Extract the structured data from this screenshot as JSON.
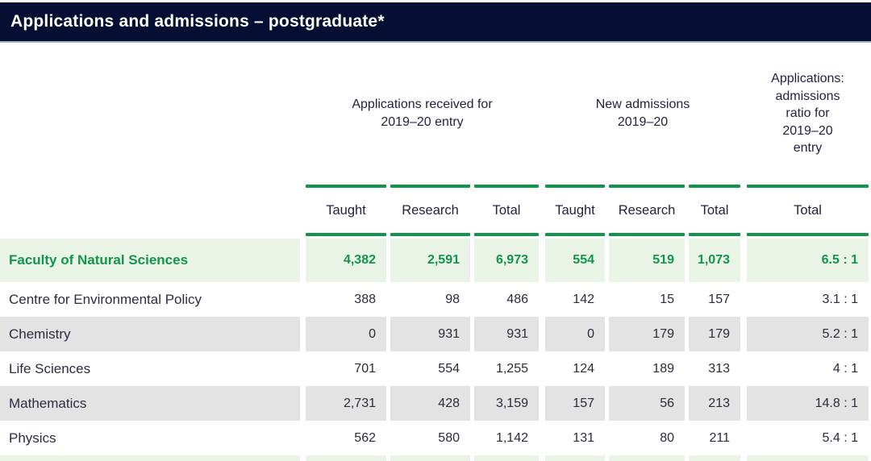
{
  "title_bar": {
    "title": "Applications and admissions – postgraduate*"
  },
  "colors": {
    "header_navy": "#050E33",
    "accent_green": "#12954A",
    "highlight_row_bg": "#E9F3E6",
    "stripe_row_bg": "#E3E3E3",
    "title_text": "#FFFFFF"
  },
  "table": {
    "column_groups": {
      "applications": "Applications received for 2019–20 entry",
      "admissions": "New admissions 2019–20",
      "ratio": "Applications: admissions ratio for 2019–20 entry"
    },
    "column_headers": [
      "Taught",
      "Research",
      "Total",
      "Taught",
      "Research",
      "Total",
      "Total"
    ],
    "rows": [
      {
        "label": "Faculty of Natural Sciences",
        "values": [
          "4,382",
          "2,591",
          "6,973",
          "554",
          "519",
          "1,073"
        ],
        "ratio": "6.5 : 1"
      },
      {
        "label": "Centre for Environmental Policy",
        "values": [
          "388",
          "98",
          "486",
          "142",
          "15",
          "157"
        ],
        "ratio": "3.1 : 1"
      },
      {
        "label": "Chemistry",
        "values": [
          "0",
          "931",
          "931",
          "0",
          "179",
          "179"
        ],
        "ratio": "5.2 : 1"
      },
      {
        "label": "Life Sciences",
        "values": [
          "701",
          "554",
          "1,255",
          "124",
          "189",
          "313"
        ],
        "ratio": "4 : 1"
      },
      {
        "label": "Mathematics",
        "values": [
          "2,731",
          "428",
          "3,159",
          "157",
          "56",
          "213"
        ],
        "ratio": "14.8 : 1"
      },
      {
        "label": "Physics",
        "values": [
          "562",
          "580",
          "1,142",
          "131",
          "80",
          "211"
        ],
        "ratio": "5.4 : 1"
      }
    ]
  }
}
